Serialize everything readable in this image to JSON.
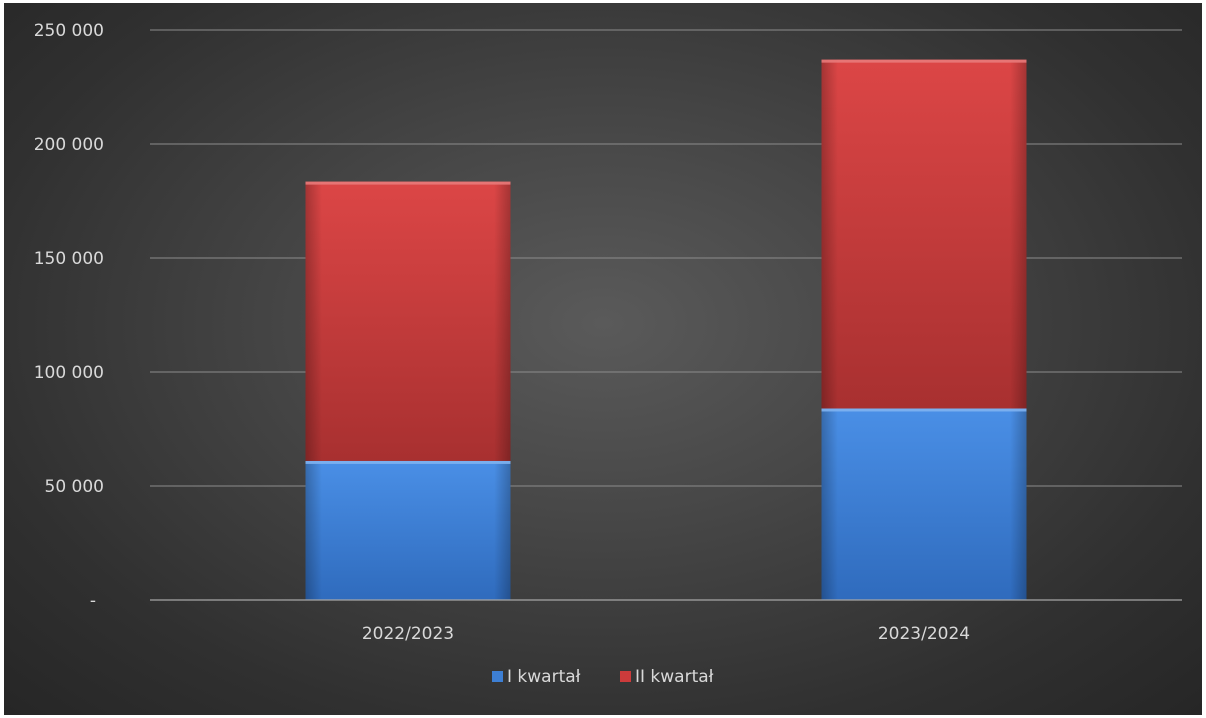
{
  "chart_data": {
    "type": "bar",
    "stacked": true,
    "categories": [
      "2022/2023",
      "2023/2024"
    ],
    "series": [
      {
        "name": "I kwartał",
        "values": [
          61000,
          84000
        ],
        "color": "#3d7fd4"
      },
      {
        "name": "II kwartał",
        "values": [
          122500,
          153000
        ],
        "color": "#cc3b3b"
      }
    ],
    "ylim": [
      0,
      250000
    ],
    "y_ticks": [
      0,
      50000,
      100000,
      150000,
      200000,
      250000
    ],
    "y_tick_labels": [
      "-",
      "50 000",
      "100 000",
      "150 000",
      "200 000",
      "250 000"
    ],
    "title": "",
    "xlabel": "",
    "ylabel": "",
    "grid": true,
    "legend_position": "bottom"
  }
}
